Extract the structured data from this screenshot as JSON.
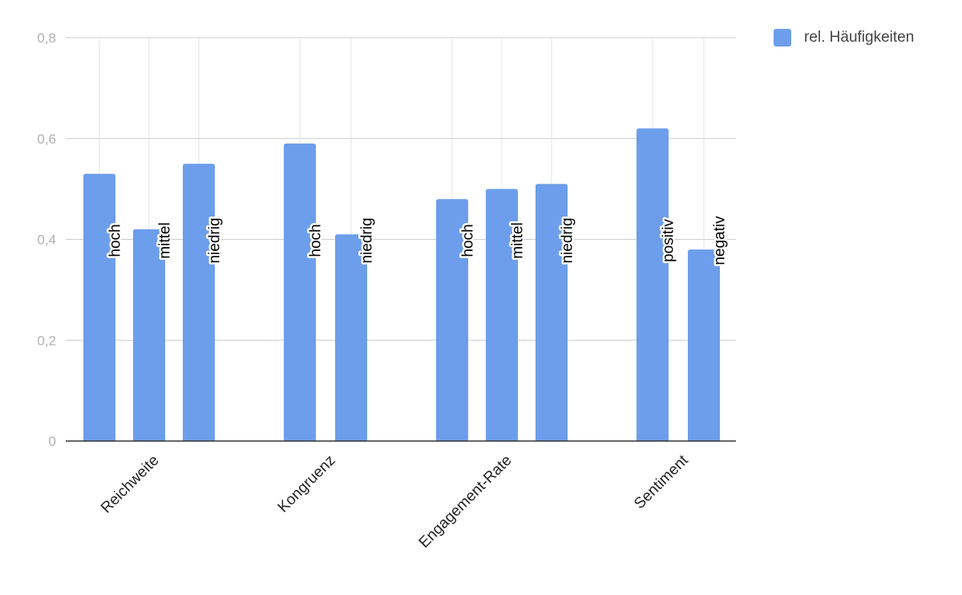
{
  "chart_data": {
    "type": "bar",
    "series": [
      {
        "name": "rel. Häufigkeiten",
        "color": "#6d9eeb"
      }
    ],
    "groups": [
      {
        "label": "Reichweite",
        "bars": [
          {
            "category": "hoch",
            "value": 0.53
          },
          {
            "category": "mittel",
            "value": 0.42
          },
          {
            "category": "niedrig",
            "value": 0.55
          }
        ]
      },
      {
        "label": "Kongruenz",
        "bars": [
          {
            "category": "hoch",
            "value": 0.59
          },
          {
            "category": "niedrig",
            "value": 0.41
          }
        ]
      },
      {
        "label": "Engagement-Rate",
        "bars": [
          {
            "category": "hoch",
            "value": 0.48
          },
          {
            "category": "mittel",
            "value": 0.5
          },
          {
            "category": "niedrig",
            "value": 0.51
          }
        ]
      },
      {
        "label": "Sentiment",
        "bars": [
          {
            "category": "positiv",
            "value": 0.62
          },
          {
            "category": "negativ",
            "value": 0.38
          }
        ]
      }
    ],
    "y_ticks": [
      "0",
      "0,2",
      "0,4",
      "0,6",
      "0,8"
    ],
    "ylim": [
      0,
      0.8
    ],
    "grid": true,
    "legend_position": "top-right",
    "colors": {
      "bar": "#6d9eeb",
      "grid": "#cccccc",
      "axis": "#333333",
      "tick_text": "#b0b0b0"
    }
  }
}
